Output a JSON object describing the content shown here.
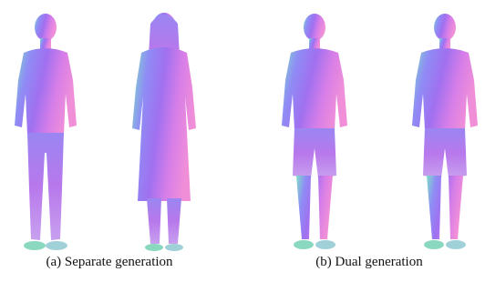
{
  "panels": [
    {
      "caption": "(a) Separate generation"
    },
    {
      "caption": "(b) Dual generation"
    }
  ]
}
